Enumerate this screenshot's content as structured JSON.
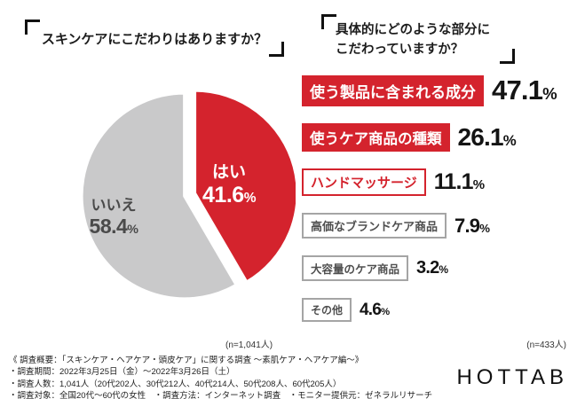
{
  "colors": {
    "red": "#d4232d",
    "pie_gray": "#c9c9ca"
  },
  "left": {
    "title": "スキンケアにこだわりはありますか？",
    "n_label": "(n=1,041人)",
    "pie": {
      "slices": [
        {
          "label": "はい",
          "value": "41.6",
          "unit": "%"
        },
        {
          "label": "いいえ",
          "value": "58.4",
          "unit": "%"
        }
      ]
    }
  },
  "right": {
    "title_line1": "具体的にどのような部分に",
    "title_line2": "こだわっていますか？",
    "n_label": "(n=433人)",
    "items": [
      {
        "label": "使う製品に含まれる成分",
        "value": "47.1",
        "unit": "%"
      },
      {
        "label": "使うケア商品の種類",
        "value": "26.1",
        "unit": "%"
      },
      {
        "label": "ハンドマッサージ",
        "value": "11.1",
        "unit": "%"
      },
      {
        "label": "高価なブランドケア商品",
        "value": "7.9",
        "unit": "%"
      },
      {
        "label": "大容量のケア商品",
        "value": "3.2",
        "unit": "%"
      },
      {
        "label": "その他",
        "value": "4.6",
        "unit": "%"
      }
    ]
  },
  "footer": {
    "lines": [
      "《 調査概要：「スキンケア・ヘアケア・頭皮ケア」に関する調査 〜素肌ケア・ヘアケア編〜》",
      "・調査期間：2022年3月25日（金）〜2022年3月26日（土）",
      "・調査人数：1,041人（20代202人、30代212人、40代214人、50代208人、60代205人）",
      "・調査対象：全国20代〜60代の女性　・調査方法：インターネット調査　・モニター提供元：ゼネラルリサーチ"
    ]
  },
  "logo": "HOTTAB",
  "chart_data": [
    {
      "type": "pie",
      "title": "スキンケアにこだわりはありますか？",
      "labels": [
        "はい",
        "いいえ"
      ],
      "values": [
        41.6,
        58.4
      ],
      "colors": [
        "#d4232d",
        "#c9c9ca"
      ],
      "n": "(n=1,041人)",
      "start_angle_deg": 0,
      "direction": "clockwise",
      "explode": [
        0.05,
        0
      ]
    },
    {
      "type": "bar",
      "title": "具体的にどのような部分にこだわっていますか？",
      "categories": [
        "使う製品に含まれる成分",
        "使うケア商品の種類",
        "ハンドマッサージ",
        "高価なブランドケア商品",
        "大容量のケア商品",
        "その他"
      ],
      "values": [
        47.1,
        26.1,
        11.1,
        7.9,
        3.2,
        4.6
      ],
      "unit": "%",
      "n": "(n=433人)"
    }
  ]
}
